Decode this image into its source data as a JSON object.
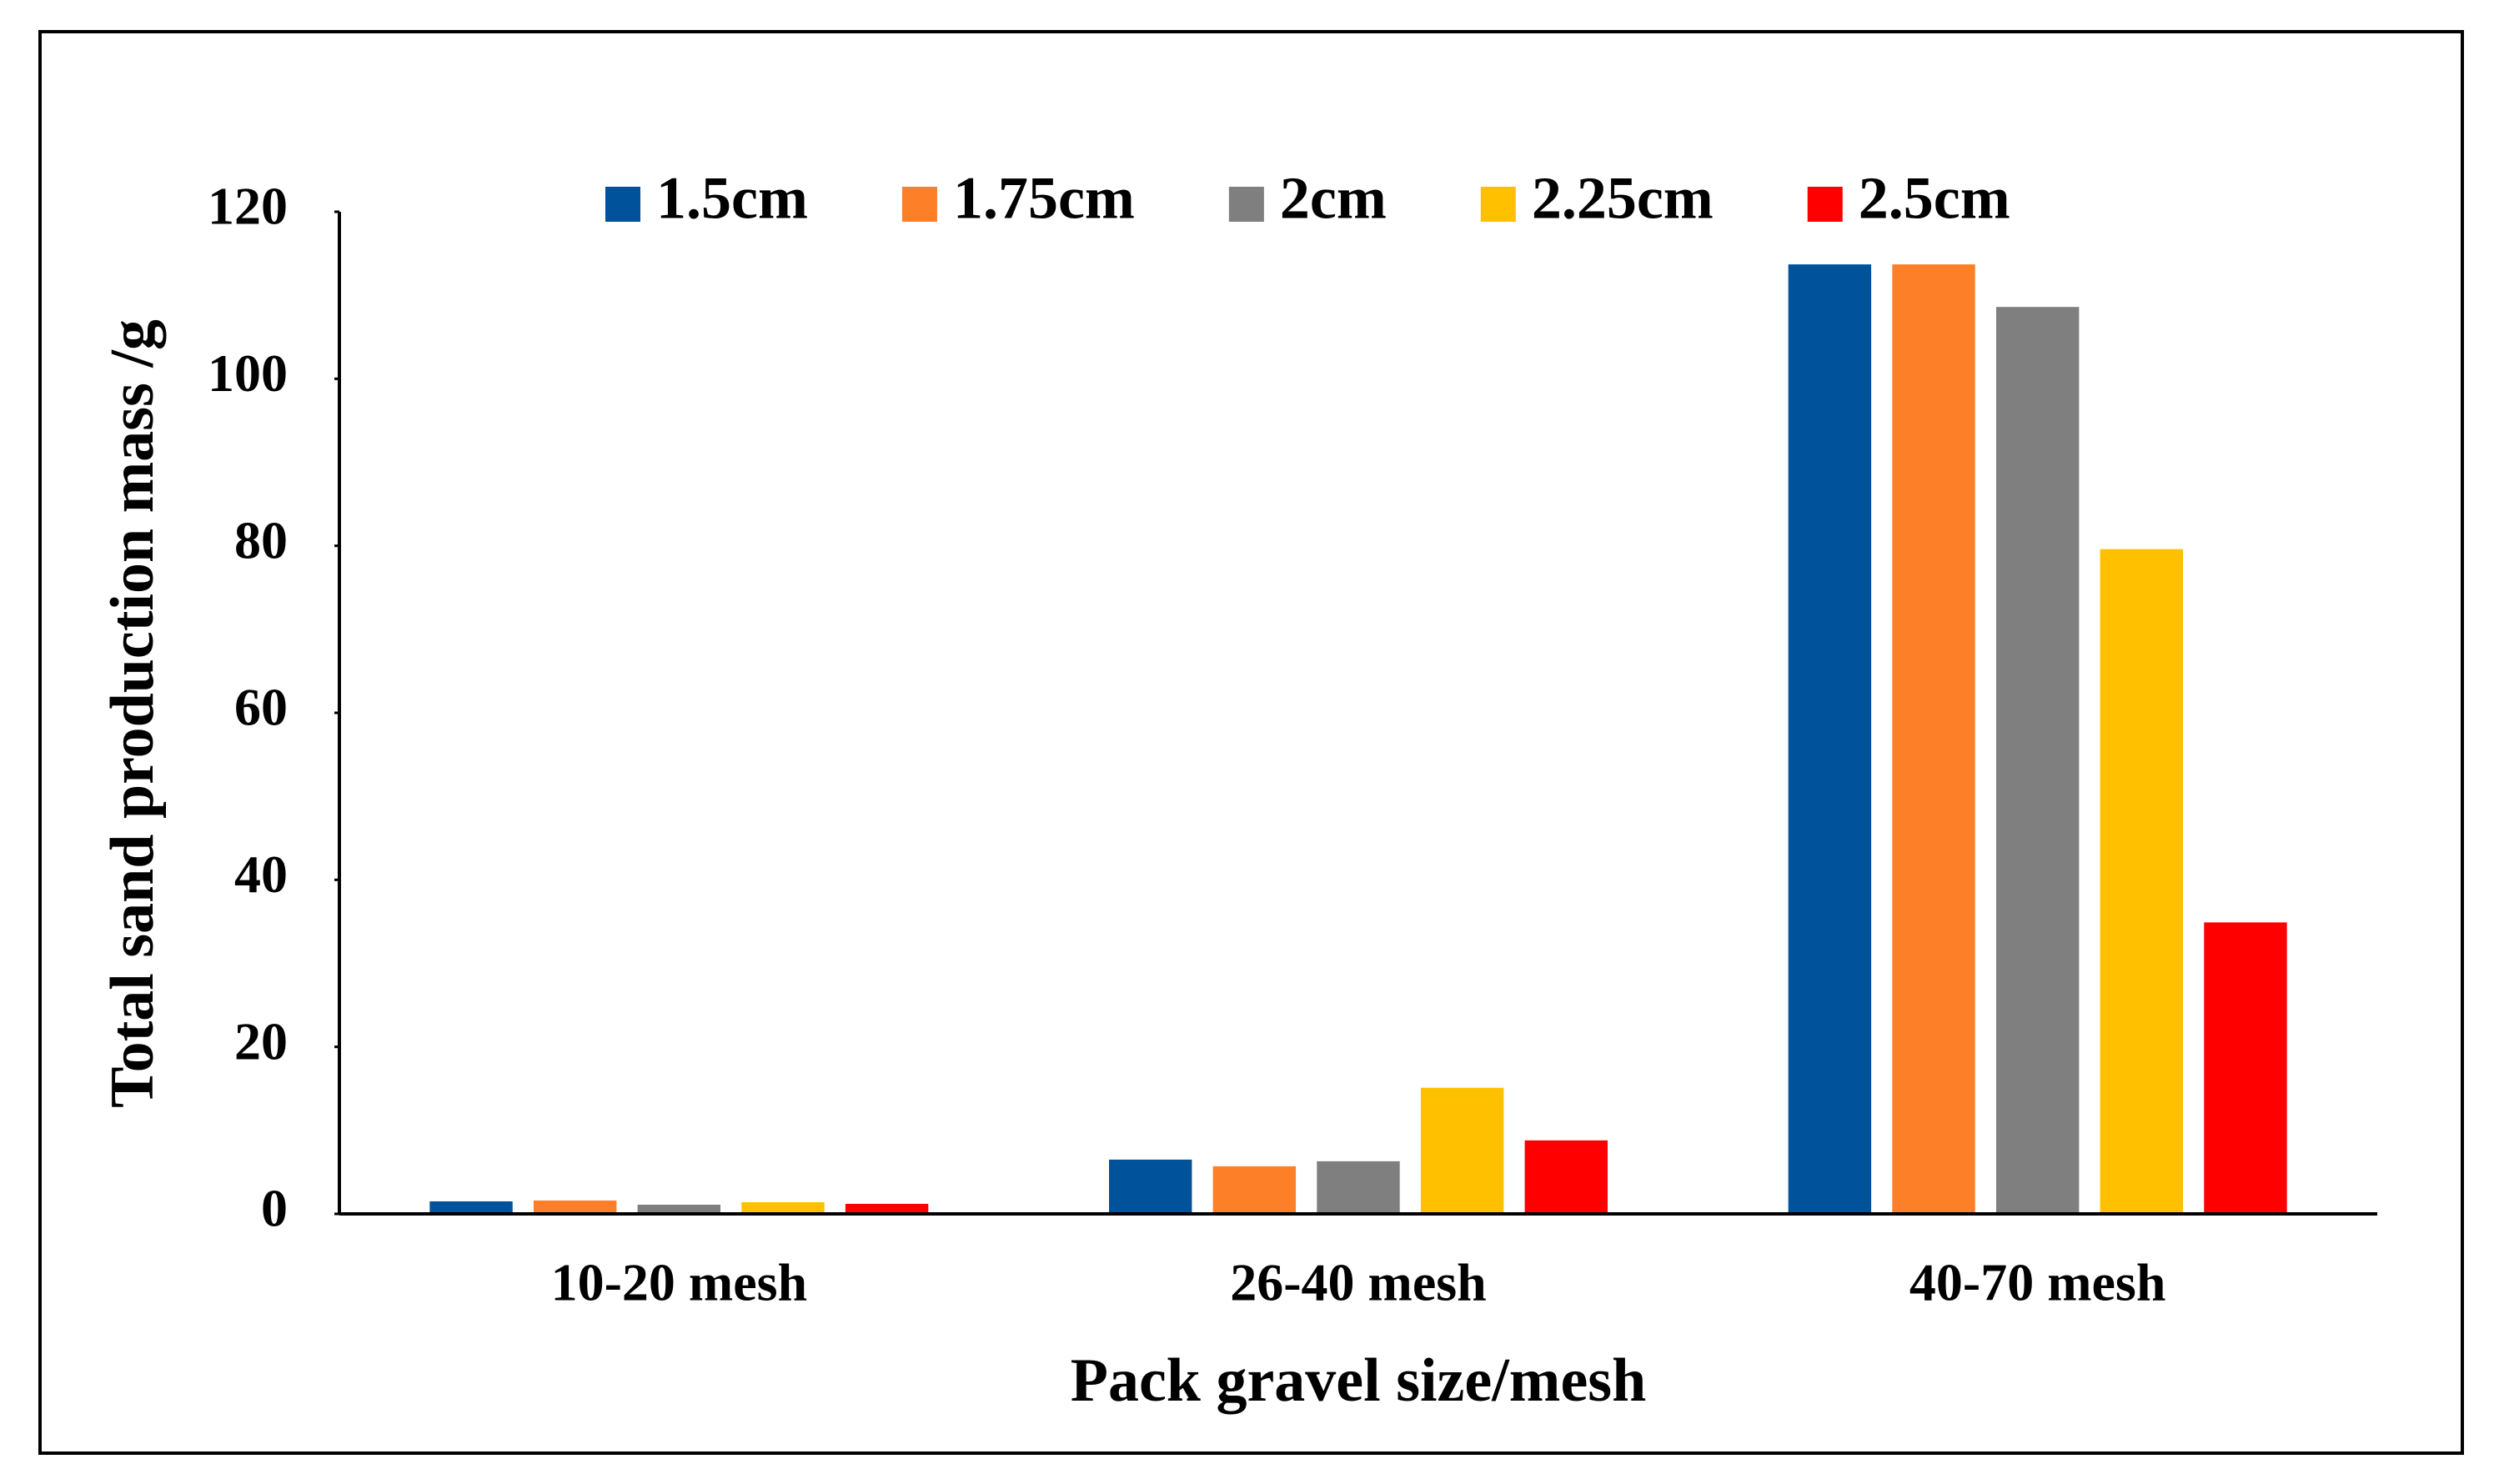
{
  "chart_data": {
    "type": "bar",
    "xlabel": "Pack gravel size/mesh",
    "ylabel": "Total sand production mass /g",
    "categories": [
      "10-20 mesh",
      "26-40 mesh",
      "40-70 mesh"
    ],
    "series": [
      {
        "name": "1.5cm",
        "color": "#00529b",
        "values": [
          1.5,
          6.5,
          113.7
        ]
      },
      {
        "name": "1.75cm",
        "color": "#fd7f28",
        "values": [
          1.6,
          5.7,
          113.7
        ]
      },
      {
        "name": "2cm",
        "color": "#7f7f7f",
        "values": [
          1.1,
          6.3,
          108.6
        ]
      },
      {
        "name": "2.25cm",
        "color": "#ffc000",
        "values": [
          1.4,
          15.1,
          79.6
        ]
      },
      {
        "name": "2.5cm",
        "color": "#ff0000",
        "values": [
          1.2,
          8.8,
          34.9
        ]
      }
    ],
    "ylim": [
      0,
      120
    ],
    "yticks": [
      0,
      20,
      40,
      60,
      80,
      100,
      120
    ],
    "legend": "top"
  }
}
